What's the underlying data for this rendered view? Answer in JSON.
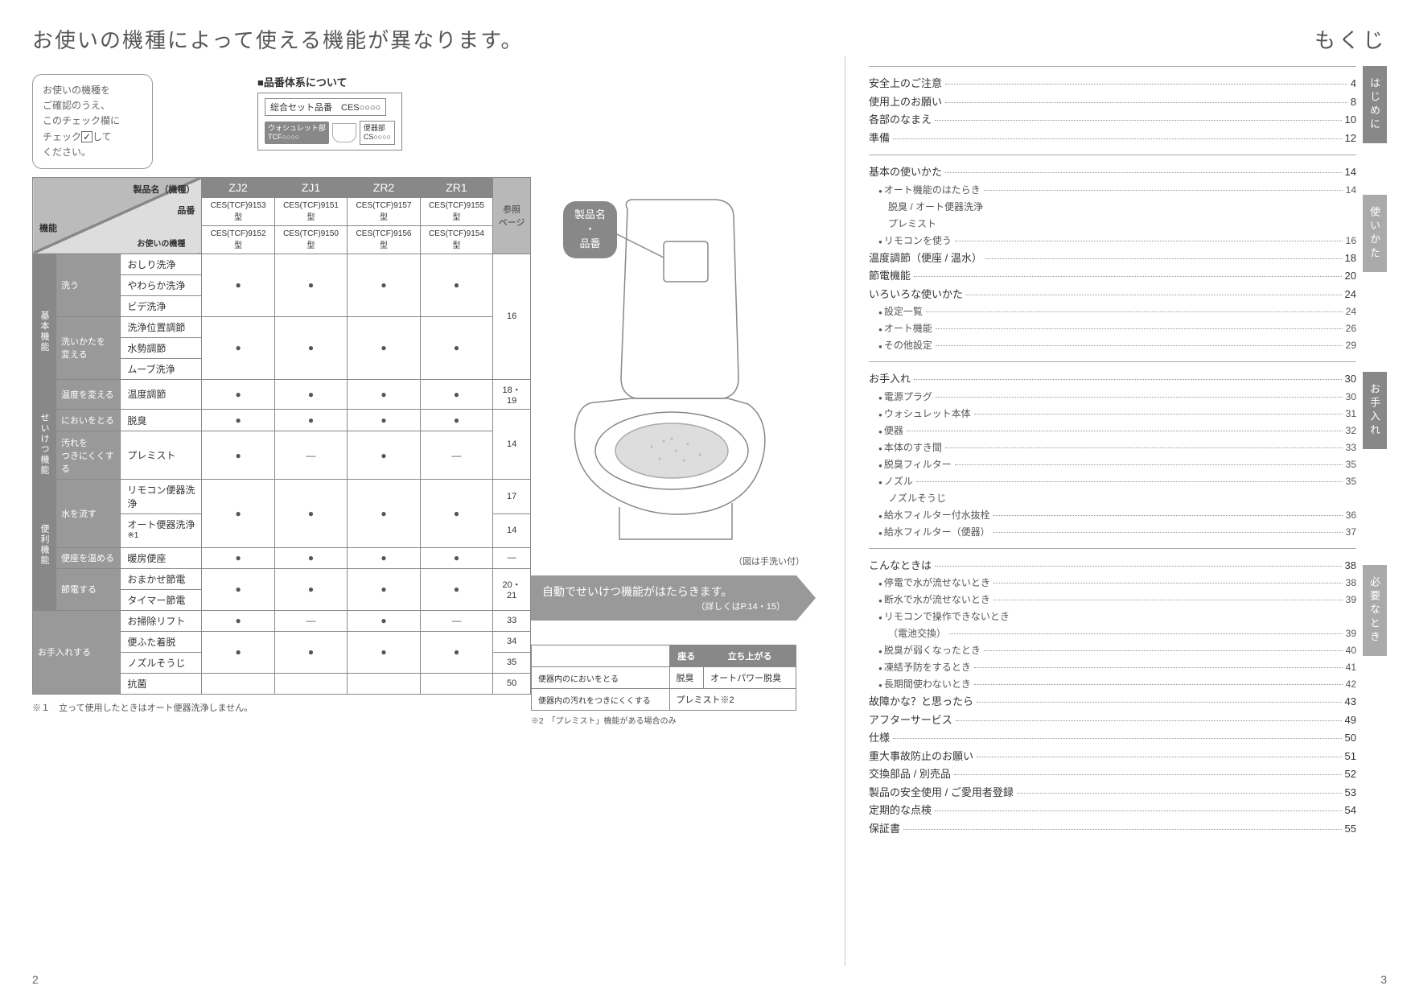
{
  "left": {
    "title": "お使いの機種によって使える機能が異なります。",
    "bubble": "お使いの機種をご確認のうえ、このチェック欄にチェック☑してください。",
    "hinban": {
      "heading": "■品番体系について",
      "set": "総合セット品番　CES○○○○",
      "washlet": "ウォシュレット部\nTCF○○○○",
      "bowl": "便器部\nCS○○○○"
    },
    "table": {
      "diag": {
        "d1": "製品名（機種）",
        "d2": "品番",
        "d3": "機能",
        "d4": "お使いの機種"
      },
      "models": [
        "ZJ2",
        "ZJ1",
        "ZR2",
        "ZR1"
      ],
      "ref_hdr": "参照\nページ",
      "codes_row1": [
        "CES(TCF)9153型",
        "CES(TCF)9151型",
        "CES(TCF)9157型",
        "CES(TCF)9155型"
      ],
      "codes_row2": [
        "CES(TCF)9152型",
        "CES(TCF)9150型",
        "CES(TCF)9156型",
        "CES(TCF)9154型"
      ],
      "groups": [
        {
          "cat": "基本機能",
          "subs": [
            {
              "name": "洗う",
              "rows": [
                {
                  "fn": "おしり洗浄",
                  "m": [
                    "",
                    "",
                    "",
                    ""
                  ],
                  "ref": ""
                },
                {
                  "fn": "やわらか洗浄",
                  "m": [
                    "dot",
                    "dot",
                    "dot",
                    "dot"
                  ],
                  "ref": ""
                },
                {
                  "fn": "ビデ洗浄",
                  "m": [
                    "",
                    "",
                    "",
                    ""
                  ],
                  "ref": "16"
                }
              ]
            },
            {
              "name": "洗いかたを変える",
              "rows": [
                {
                  "fn": "洗浄位置調節",
                  "m": [
                    "",
                    "",
                    "",
                    ""
                  ],
                  "ref": ""
                },
                {
                  "fn": "水勢調節",
                  "m": [
                    "dot",
                    "dot",
                    "dot",
                    "dot"
                  ],
                  "ref": ""
                },
                {
                  "fn": "ムーブ洗浄",
                  "m": [
                    "",
                    "",
                    "",
                    ""
                  ],
                  "ref": ""
                }
              ]
            },
            {
              "name": "温度を変える",
              "rows": [
                {
                  "fn": "温度調節",
                  "m": [
                    "dot",
                    "dot",
                    "dot",
                    "dot"
                  ],
                  "ref": "18・19"
                }
              ]
            }
          ]
        },
        {
          "cat": "せいけつ機能",
          "subs": [
            {
              "name": "においをとる",
              "rows": [
                {
                  "fn": "脱臭",
                  "m": [
                    "dot",
                    "dot",
                    "dot",
                    "dot"
                  ],
                  "ref": ""
                }
              ]
            },
            {
              "name": "汚れをつきにくくする",
              "rows": [
                {
                  "fn": "プレミスト",
                  "m": [
                    "dot",
                    "dash",
                    "dot",
                    "dash"
                  ],
                  "ref": "14"
                }
              ]
            }
          ]
        },
        {
          "cat": "便利機能",
          "subs": [
            {
              "name": "水を流す",
              "rows": [
                {
                  "fn": "リモコン便器洗浄",
                  "m": [
                    "dot",
                    "dot",
                    "dot",
                    "dot"
                  ],
                  "ref": "17",
                  "rowspan_m": true
                },
                {
                  "fn": "オート便器洗浄※1",
                  "m": [],
                  "ref": "14"
                }
              ]
            },
            {
              "name": "便座を温める",
              "rows": [
                {
                  "fn": "暖房便座",
                  "m": [
                    "dot",
                    "dot",
                    "dot",
                    "dot"
                  ],
                  "ref": "—"
                }
              ]
            },
            {
              "name": "節電する",
              "rows": [
                {
                  "fn": "おまかせ節電",
                  "m": [
                    "dot",
                    "dot",
                    "dot",
                    "dot"
                  ],
                  "ref": "20・21",
                  "rowspan_m": true
                },
                {
                  "fn": "タイマー節電",
                  "m": [],
                  "ref": ""
                }
              ]
            }
          ]
        },
        {
          "cat": "",
          "subs": [
            {
              "name": "お手入れする",
              "rows": [
                {
                  "fn": "お掃除リフト",
                  "m": [
                    "dot",
                    "dash",
                    "dot",
                    "dash"
                  ],
                  "ref": "33"
                },
                {
                  "fn": "便ふた着脱",
                  "m": [
                    "",
                    "",
                    "",
                    ""
                  ],
                  "ref": "34"
                },
                {
                  "fn": "ノズルそうじ",
                  "m": [
                    "dot",
                    "dot",
                    "dot",
                    "dot"
                  ],
                  "ref": "35"
                },
                {
                  "fn": "抗菌",
                  "m": [
                    "",
                    "",
                    "",
                    ""
                  ],
                  "ref": "50"
                }
              ]
            }
          ]
        }
      ]
    },
    "footnote1": "※１　立って使用したときはオート便器洗浄しません。",
    "illust": {
      "label": "製品名\n・\n品番",
      "caption": "（図は手洗い付）",
      "banner_main": "自動でせいけつ機能がはたらきます。",
      "banner_sub": "（詳しくはP.14・15）"
    },
    "atable": {
      "hdr": [
        "座る",
        "立ち上がる"
      ],
      "rows": [
        {
          "label": "便器内のにおいをとる",
          "c1": "脱臭",
          "c2": "オートパワー脱臭"
        },
        {
          "label": "便器内の汚れをつきにくくする",
          "c1": "プレミスト※2",
          "c2": ""
        }
      ],
      "note": "※2　「プレミスト」機能がある場合のみ"
    },
    "pagenum": "2"
  },
  "right": {
    "title": "もくじ",
    "tabs": [
      "はじめに",
      "使いかた",
      "お手入れ",
      "必要なとき"
    ],
    "sections": [
      {
        "items": [
          {
            "t": "安全上のご注意",
            "p": "4"
          },
          {
            "t": "使用上のお願い",
            "p": "8"
          },
          {
            "t": "各部のなまえ",
            "p": "10"
          },
          {
            "t": "準備",
            "p": "12"
          }
        ]
      },
      {
        "items": [
          {
            "t": "基本の使いかた",
            "p": "14"
          },
          {
            "t": "オート機能のはたらき",
            "p": "14",
            "sub": true
          },
          {
            "t": "脱臭 / オート便器洗浄",
            "indent": true
          },
          {
            "t": "プレミスト",
            "indent": true
          },
          {
            "t": "リモコンを使う",
            "p": "16",
            "sub": true
          },
          {
            "t": "温度調節（便座 / 温水）",
            "p": "18"
          },
          {
            "t": "節電機能",
            "p": "20"
          },
          {
            "t": "いろいろな使いかた",
            "p": "24"
          },
          {
            "t": "設定一覧",
            "p": "24",
            "sub": true
          },
          {
            "t": "オート機能",
            "p": "26",
            "sub": true
          },
          {
            "t": "その他設定",
            "p": "29",
            "sub": true
          }
        ]
      },
      {
        "items": [
          {
            "t": "お手入れ",
            "p": "30"
          },
          {
            "t": "電源プラグ",
            "p": "30",
            "sub": true
          },
          {
            "t": "ウォシュレット本体",
            "p": "31",
            "sub": true
          },
          {
            "t": "便器",
            "p": "32",
            "sub": true
          },
          {
            "t": "本体のすき間",
            "p": "33",
            "sub": true
          },
          {
            "t": "脱臭フィルター",
            "p": "35",
            "sub": true
          },
          {
            "t": "ノズル",
            "p": "35",
            "sub": true
          },
          {
            "t": "ノズルそうじ",
            "indent": true
          },
          {
            "t": "給水フィルター付水抜栓",
            "p": "36",
            "sub": true
          },
          {
            "t": "給水フィルター（便器）",
            "p": "37",
            "sub": true
          }
        ]
      },
      {
        "items": [
          {
            "t": "こんなときは",
            "p": "38"
          },
          {
            "t": "停電で水が流せないとき",
            "p": "38",
            "sub": true
          },
          {
            "t": "断水で水が流せないとき",
            "p": "39",
            "sub": true
          },
          {
            "t": "リモコンで操作できないとき",
            "sub": true
          },
          {
            "t": "（電池交換）",
            "p": "39",
            "indent": true
          },
          {
            "t": "脱臭が弱くなったとき",
            "p": "40",
            "sub": true
          },
          {
            "t": "凍結予防をするとき",
            "p": "41",
            "sub": true
          },
          {
            "t": "長期間使わないとき",
            "p": "42",
            "sub": true
          },
          {
            "t": "故障かな？と思ったら",
            "p": "43"
          },
          {
            "t": "アフターサービス",
            "p": "49"
          },
          {
            "t": "仕様",
            "p": "50"
          },
          {
            "t": "重大事故防止のお願い",
            "p": "51"
          },
          {
            "t": "交換部品 / 別売品",
            "p": "52"
          },
          {
            "t": "製品の安全使用 / ご愛用者登録",
            "p": "53"
          },
          {
            "t": "定期的な点検",
            "p": "54"
          },
          {
            "t": "保証書",
            "p": "55"
          }
        ]
      }
    ],
    "pagenum": "3"
  }
}
